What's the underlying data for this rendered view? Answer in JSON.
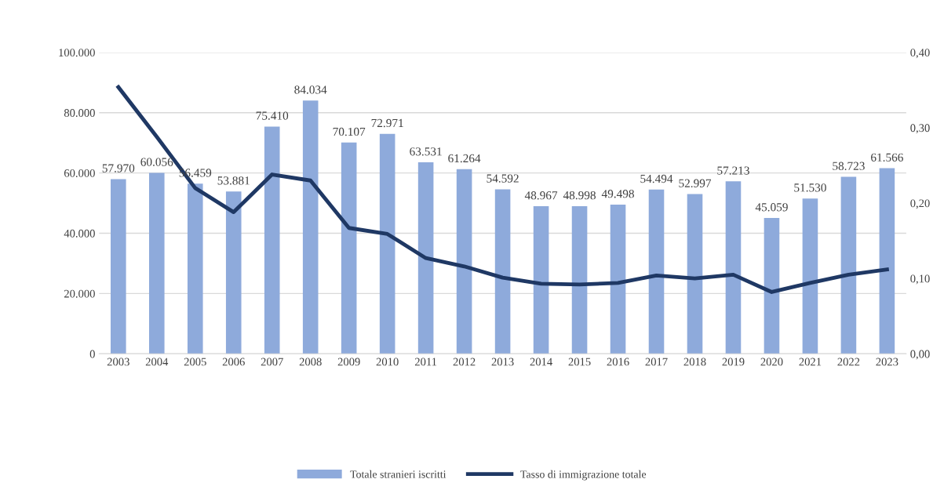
{
  "chart_data": {
    "type": "bar",
    "categories": [
      "2003",
      "2004",
      "2005",
      "2006",
      "2007",
      "2008",
      "2009",
      "2010",
      "2011",
      "2012",
      "2013",
      "2014",
      "2015",
      "2016",
      "2017",
      "2018",
      "2019",
      "2020",
      "2021",
      "2022",
      "2023"
    ],
    "series": [
      {
        "name": "Totale stranieri iscritti",
        "color": "#8eaadb",
        "values": [
          57970,
          60056,
          56459,
          53881,
          75410,
          84034,
          70107,
          72971,
          63531,
          61264,
          54592,
          48967,
          48998,
          49498,
          54494,
          52997,
          57213,
          45059,
          51530,
          58723,
          61566
        ],
        "value_labels": [
          "57.970",
          "60.056",
          "56.459",
          "53.881",
          "75.410",
          "84.034",
          "70.107",
          "72.971",
          "63.531",
          "61.264",
          "54.592",
          "48.967",
          "48.998",
          "49.498",
          "54.494",
          "52.997",
          "57.213",
          "45.059",
          "51.530",
          "58.723",
          "61.566"
        ]
      },
      {
        "name": "Tasso di immigrazione totale",
        "type": "line",
        "axis": "y2",
        "color": "#1f3864",
        "values": [
          0.354,
          0.288,
          0.22,
          0.188,
          0.238,
          0.23,
          0.167,
          0.159,
          0.127,
          0.116,
          0.101,
          0.093,
          0.092,
          0.094,
          0.104,
          0.1,
          0.105,
          0.082,
          0.094,
          0.105,
          0.112
        ]
      }
    ],
    "ylim": [
      0,
      100000
    ],
    "yticks": [
      {
        "value": 0,
        "label": "0"
      },
      {
        "value": 20000,
        "label": "20.000"
      },
      {
        "value": 40000,
        "label": "40.000"
      },
      {
        "value": 60000,
        "label": "60.000"
      },
      {
        "value": 80000,
        "label": "80.000"
      },
      {
        "value": 100000,
        "label": "100.000"
      }
    ],
    "y2lim": [
      0,
      0.4
    ],
    "y2ticks": [
      {
        "value": 0,
        "label": "0,00"
      },
      {
        "value": 0.1,
        "label": "0,10"
      },
      {
        "value": 0.2,
        "label": "0,20"
      },
      {
        "value": 0.3,
        "label": "0,30"
      },
      {
        "value": 0.4,
        "label": "0,40"
      }
    ],
    "grid": "y",
    "legend": "bottom",
    "marker": "none",
    "line_style": "solid"
  }
}
